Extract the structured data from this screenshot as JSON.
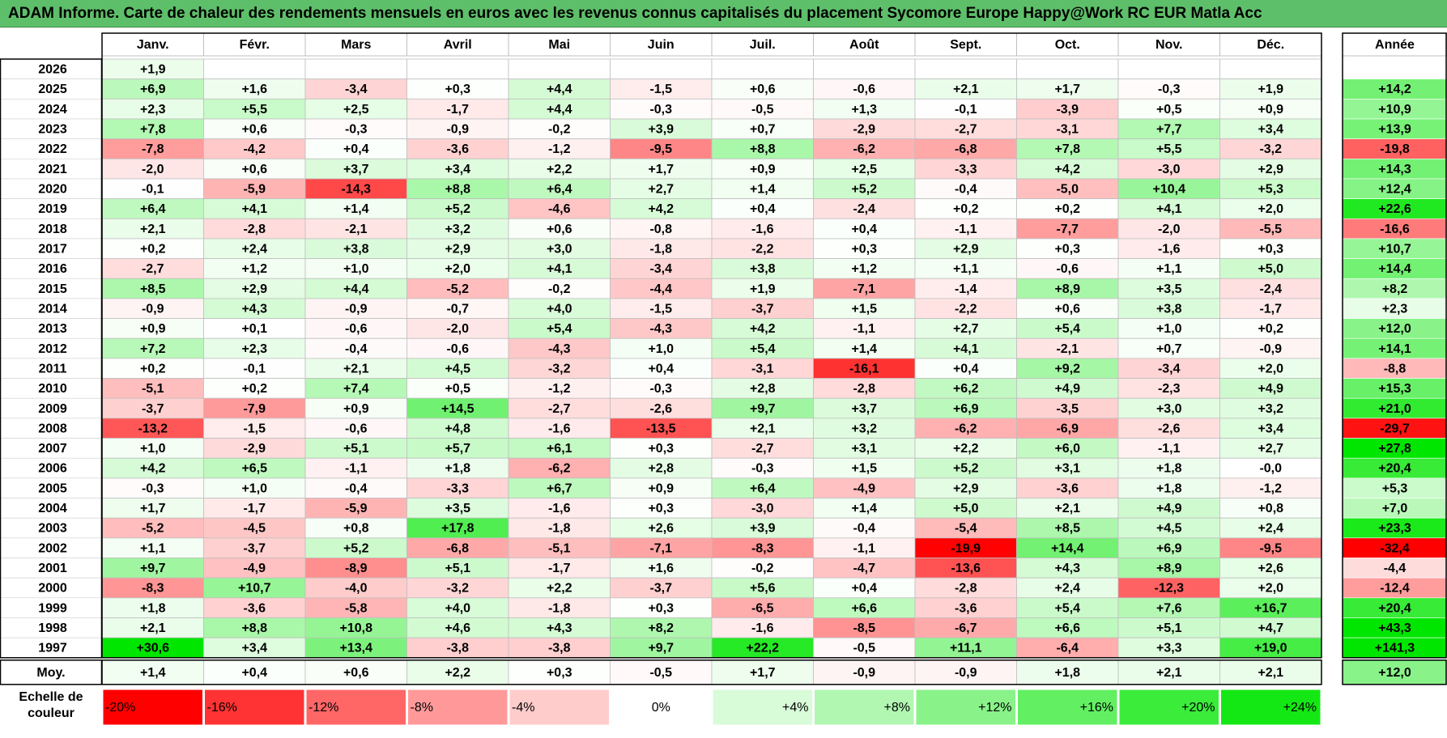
{
  "title": "ADAM Informe. Carte de chaleur des rendements mensuels en euros avec les revenus connus capitalisés du placement Sycomore Europe Happy@Work RC EUR Matla Acc",
  "scale_label": "Echelle de couleur",
  "chart_data": {
    "type": "heatmap",
    "title": "ADAM Informe. Carte de chaleur des rendements mensuels en euros avec les revenus connus capitalisés du placement Sycomore Europe Happy@Work RC EUR Matla Acc",
    "months": [
      "Janv.",
      "Févr.",
      "Mars",
      "Avril",
      "Mai",
      "Juin",
      "Juil.",
      "Août",
      "Sept.",
      "Oct.",
      "Nov.",
      "Déc."
    ],
    "year_header": "Année",
    "avg_label": "Moy.",
    "rows": [
      {
        "year": "2026",
        "months": [
          "+1,9",
          null,
          null,
          null,
          null,
          null,
          null,
          null,
          null,
          null,
          null,
          null
        ],
        "annual": null
      },
      {
        "year": "2025",
        "months": [
          "+6,9",
          "+1,6",
          "-3,4",
          "+0,3",
          "+4,4",
          "-1,5",
          "+0,6",
          "-0,6",
          "+2,1",
          "+1,7",
          "-0,3",
          "+1,9"
        ],
        "annual": "+14,2"
      },
      {
        "year": "2024",
        "months": [
          "+2,3",
          "+5,5",
          "+2,5",
          "-1,7",
          "+4,4",
          "-0,3",
          "-0,5",
          "+1,3",
          "-0,1",
          "-3,9",
          "+0,5",
          "+0,9"
        ],
        "annual": "+10,9"
      },
      {
        "year": "2023",
        "months": [
          "+7,8",
          "+0,6",
          "-0,3",
          "-0,9",
          "-0,2",
          "+3,9",
          "+0,7",
          "-2,9",
          "-2,7",
          "-3,1",
          "+7,7",
          "+3,4"
        ],
        "annual": "+13,9"
      },
      {
        "year": "2022",
        "months": [
          "-7,8",
          "-4,2",
          "+0,4",
          "-3,6",
          "-1,2",
          "-9,5",
          "+8,8",
          "-6,2",
          "-6,8",
          "+7,8",
          "+5,5",
          "-3,2"
        ],
        "annual": "-19,8"
      },
      {
        "year": "2021",
        "months": [
          "-2,0",
          "+0,6",
          "+3,7",
          "+3,4",
          "+2,2",
          "+1,7",
          "+0,9",
          "+2,5",
          "-3,3",
          "+4,2",
          "-3,0",
          "+2,9"
        ],
        "annual": "+14,3"
      },
      {
        "year": "2020",
        "months": [
          "-0,1",
          "-5,9",
          "-14,3",
          "+8,8",
          "+6,4",
          "+2,7",
          "+1,4",
          "+5,2",
          "-0,4",
          "-5,0",
          "+10,4",
          "+5,3"
        ],
        "annual": "+12,4"
      },
      {
        "year": "2019",
        "months": [
          "+6,4",
          "+4,1",
          "+1,4",
          "+5,2",
          "-4,6",
          "+4,2",
          "+0,4",
          "-2,4",
          "+0,2",
          "+0,2",
          "+4,1",
          "+2,0"
        ],
        "annual": "+22,6"
      },
      {
        "year": "2018",
        "months": [
          "+2,1",
          "-2,8",
          "-2,1",
          "+3,2",
          "+0,6",
          "-0,8",
          "-1,6",
          "+0,4",
          "-1,1",
          "-7,7",
          "-2,0",
          "-5,5"
        ],
        "annual": "-16,6"
      },
      {
        "year": "2017",
        "months": [
          "+0,2",
          "+2,4",
          "+3,8",
          "+2,9",
          "+3,0",
          "-1,8",
          "-2,2",
          "+0,3",
          "+2,9",
          "+0,3",
          "-1,6",
          "+0,3"
        ],
        "annual": "+10,7"
      },
      {
        "year": "2016",
        "months": [
          "-2,7",
          "+1,2",
          "+1,0",
          "+2,0",
          "+4,1",
          "-3,4",
          "+3,8",
          "+1,2",
          "+1,1",
          "-0,6",
          "+1,1",
          "+5,0"
        ],
        "annual": "+14,4"
      },
      {
        "year": "2015",
        "months": [
          "+8,5",
          "+2,9",
          "+4,4",
          "-5,2",
          "-0,2",
          "-4,4",
          "+1,9",
          "-7,1",
          "-1,4",
          "+8,9",
          "+3,5",
          "-2,4"
        ],
        "annual": "+8,2"
      },
      {
        "year": "2014",
        "months": [
          "-0,9",
          "+4,3",
          "-0,9",
          "-0,7",
          "+4,0",
          "-1,5",
          "-3,7",
          "+1,5",
          "-2,2",
          "+0,6",
          "+3,8",
          "-1,7"
        ],
        "annual": "+2,3"
      },
      {
        "year": "2013",
        "months": [
          "+0,9",
          "+0,1",
          "-0,6",
          "-2,0",
          "+5,4",
          "-4,3",
          "+4,2",
          "-1,1",
          "+2,7",
          "+5,4",
          "+1,0",
          "+0,2"
        ],
        "annual": "+12,0"
      },
      {
        "year": "2012",
        "months": [
          "+7,2",
          "+2,3",
          "-0,4",
          "-0,6",
          "-4,3",
          "+1,0",
          "+5,4",
          "+1,4",
          "+4,1",
          "-2,1",
          "+0,7",
          "-0,9"
        ],
        "annual": "+14,1"
      },
      {
        "year": "2011",
        "months": [
          "+0,2",
          "-0,1",
          "+2,1",
          "+4,5",
          "-3,2",
          "+0,4",
          "-3,1",
          "-16,1",
          "+0,4",
          "+9,2",
          "-3,4",
          "+2,0"
        ],
        "annual": "-8,8"
      },
      {
        "year": "2010",
        "months": [
          "-5,1",
          "+0,2",
          "+7,4",
          "+0,5",
          "-1,2",
          "-0,3",
          "+2,8",
          "-2,8",
          "+6,2",
          "+4,9",
          "-2,3",
          "+4,9"
        ],
        "annual": "+15,3"
      },
      {
        "year": "2009",
        "months": [
          "-3,7",
          "-7,9",
          "+0,9",
          "+14,5",
          "-2,7",
          "-2,6",
          "+9,7",
          "+3,7",
          "+6,9",
          "-3,5",
          "+3,0",
          "+3,2"
        ],
        "annual": "+21,0"
      },
      {
        "year": "2008",
        "months": [
          "-13,2",
          "-1,5",
          "-0,6",
          "+4,8",
          "-1,6",
          "-13,5",
          "+2,1",
          "+3,2",
          "-6,2",
          "-6,9",
          "-2,6",
          "+3,4"
        ],
        "annual": "-29,7"
      },
      {
        "year": "2007",
        "months": [
          "+1,0",
          "-2,9",
          "+5,1",
          "+5,7",
          "+6,1",
          "+0,3",
          "-2,7",
          "+3,1",
          "+2,2",
          "+6,0",
          "-1,1",
          "+2,7"
        ],
        "annual": "+27,8"
      },
      {
        "year": "2006",
        "months": [
          "+4,2",
          "+6,5",
          "-1,1",
          "+1,8",
          "-6,2",
          "+2,8",
          "-0,3",
          "+1,5",
          "+5,2",
          "+3,1",
          "+1,8",
          "-0,0"
        ],
        "annual": "+20,4"
      },
      {
        "year": "2005",
        "months": [
          "-0,3",
          "+1,0",
          "-0,4",
          "-3,3",
          "+6,7",
          "+0,9",
          "+6,4",
          "-4,9",
          "+2,9",
          "-3,6",
          "+1,8",
          "-1,2"
        ],
        "annual": "+5,3"
      },
      {
        "year": "2004",
        "months": [
          "+1,7",
          "-1,7",
          "-5,9",
          "+3,5",
          "-1,6",
          "+0,3",
          "-3,0",
          "+1,4",
          "+5,0",
          "+2,1",
          "+4,9",
          "+0,8"
        ],
        "annual": "+7,0"
      },
      {
        "year": "2003",
        "months": [
          "-5,2",
          "-4,5",
          "+0,8",
          "+17,8",
          "-1,8",
          "+2,6",
          "+3,9",
          "-0,4",
          "-5,4",
          "+8,5",
          "+4,5",
          "+2,4"
        ],
        "annual": "+23,3"
      },
      {
        "year": "2002",
        "months": [
          "+1,1",
          "-3,7",
          "+5,2",
          "-6,8",
          "-5,1",
          "-7,1",
          "-8,3",
          "-1,1",
          "-19,9",
          "+14,4",
          "+6,9",
          "-9,5"
        ],
        "annual": "-32,4"
      },
      {
        "year": "2001",
        "months": [
          "+9,7",
          "-4,9",
          "-8,9",
          "+5,1",
          "-1,7",
          "+1,6",
          "-0,2",
          "-4,7",
          "-13,6",
          "+4,3",
          "+8,9",
          "+2,6"
        ],
        "annual": "-4,4"
      },
      {
        "year": "2000",
        "months": [
          "-8,3",
          "+10,7",
          "-4,0",
          "-3,2",
          "+2,2",
          "-3,7",
          "+5,6",
          "+0,4",
          "-2,8",
          "+2,4",
          "-12,3",
          "+2,0"
        ],
        "annual": "-12,4"
      },
      {
        "year": "1999",
        "months": [
          "+1,8",
          "-3,6",
          "-5,8",
          "+4,0",
          "-1,8",
          "+0,3",
          "-6,5",
          "+6,6",
          "-3,6",
          "+5,4",
          "+7,6",
          "+16,7"
        ],
        "annual": "+20,4"
      },
      {
        "year": "1998",
        "months": [
          "+2,1",
          "+8,8",
          "+10,8",
          "+4,6",
          "+4,3",
          "+8,2",
          "-1,6",
          "-8,5",
          "-6,7",
          "+6,6",
          "+5,1",
          "+4,7"
        ],
        "annual": "+43,3"
      },
      {
        "year": "1997",
        "months": [
          "+30,6",
          "+3,4",
          "+13,4",
          "-3,8",
          "-3,8",
          "+9,7",
          "+22,2",
          "-0,5",
          "+11,1",
          "-6,4",
          "+3,3",
          "+19,0"
        ],
        "annual": "+141,3"
      }
    ],
    "average": {
      "months": [
        "+1,4",
        "+0,4",
        "+0,6",
        "+2,2",
        "+0,3",
        "-0,5",
        "+1,7",
        "-0,9",
        "-0,9",
        "+1,8",
        "+2,1",
        "+2,1"
      ],
      "annual": "+12,0"
    },
    "scale": [
      "-20%",
      "-16%",
      "-12%",
      "-8%",
      "-4%",
      "0%",
      "+4%",
      "+8%",
      "+12%",
      "+16%",
      "+20%",
      "+24%"
    ],
    "scale_values": [
      -20,
      -16,
      -12,
      -8,
      -4,
      0,
      4,
      8,
      12,
      16,
      20,
      24
    ]
  }
}
